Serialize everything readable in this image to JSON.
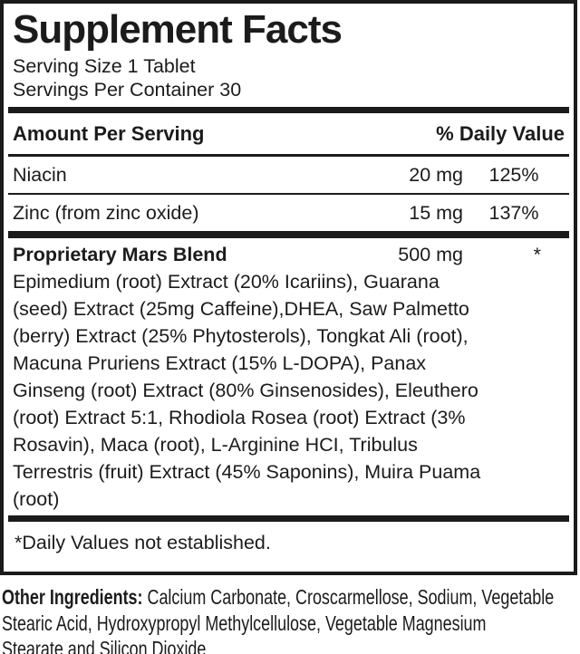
{
  "colors": {
    "ink": "#1b1b1b",
    "background": "#ffffff"
  },
  "panel": {
    "title": "Supplement Facts",
    "serving_size": "Serving Size 1 Tablet",
    "servings_per_container": "Servings Per Container 30"
  },
  "table": {
    "amount_header": "Amount Per Serving",
    "dv_header": "% Daily Value",
    "rows": [
      {
        "name": "Niacin",
        "amount": "20 mg",
        "dv": "125%"
      },
      {
        "name": "Zinc (from zinc oxide)",
        "amount": "15 mg",
        "dv": "137%"
      }
    ]
  },
  "blend": {
    "name": "Proprietary Mars Blend",
    "amount": "500 mg",
    "dv": "*",
    "lines": [
      "Epimedium (root) Extract (20% Icariins), Guarana",
      "(seed) Extract (25mg Caffeine),DHEA, Saw Palmetto",
      "(berry) Extract (25% Phytosterols), Tongkat Ali (root),",
      "Macuna Pruriens Extract (15% L-DOPA), Panax",
      "Ginseng (root) Extract (80% Ginsenosides), Eleuthero",
      "(root) Extract 5:1, Rhodiola Rosea (root) Extract (3%",
      "Rosavin), Maca (root), L-Arginine HCI, Tribulus",
      "Terrestris (fruit) Extract (45% Saponins), Muira Puama",
      "(root)"
    ]
  },
  "footnote": "*Daily Values not established.",
  "other_ingredients": {
    "label": "Other Ingredients:",
    "line1_rest": " Calcium Carbonate, Croscarmellose, Sodium, Vegetable",
    "line2": "Stearic Acid, Hydroxypropyl Methylcellulose, Vegetable Magnesium",
    "line3": "Stearate and Silicon Dioxide"
  }
}
